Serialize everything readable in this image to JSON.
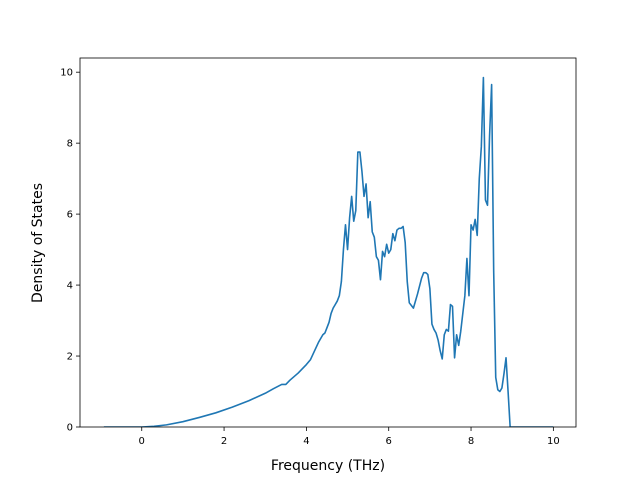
{
  "chart_data": {
    "type": "line",
    "xlabel": "Frequency (THz)",
    "ylabel": "Density of States",
    "xlim": [
      -1.5,
      10.55
    ],
    "ylim": [
      0,
      10.4
    ],
    "xticks": [
      0,
      2,
      4,
      6,
      8,
      10
    ],
    "yticks": [
      0,
      2,
      4,
      6,
      8,
      10
    ],
    "grid": false,
    "series": [
      {
        "color": "#1f77b4",
        "x": [
          -0.92,
          0.0,
          0.3,
          0.6,
          1.0,
          1.4,
          1.8,
          2.2,
          2.6,
          3.0,
          3.2,
          3.4,
          3.5,
          3.6,
          3.8,
          3.9,
          4.0,
          4.1,
          4.2,
          4.3,
          4.4,
          4.45,
          4.5,
          4.55,
          4.6,
          4.65,
          4.7,
          4.75,
          4.8,
          4.85,
          4.9,
          4.95,
          5.0,
          5.05,
          5.1,
          5.15,
          5.2,
          5.25,
          5.3,
          5.35,
          5.4,
          5.45,
          5.5,
          5.55,
          5.6,
          5.65,
          5.7,
          5.75,
          5.8,
          5.85,
          5.9,
          5.95,
          6.0,
          6.05,
          6.1,
          6.15,
          6.2,
          6.25,
          6.3,
          6.35,
          6.4,
          6.45,
          6.5,
          6.6,
          6.7,
          6.8,
          6.85,
          6.9,
          6.95,
          7.0,
          7.05,
          7.1,
          7.15,
          7.2,
          7.25,
          7.3,
          7.35,
          7.4,
          7.45,
          7.5,
          7.55,
          7.6,
          7.65,
          7.7,
          7.75,
          7.8,
          7.85,
          7.9,
          7.95,
          8.0,
          8.05,
          8.1,
          8.15,
          8.2,
          8.25,
          8.3,
          8.35,
          8.4,
          8.45,
          8.5,
          8.55,
          8.6,
          8.65,
          8.7,
          8.75,
          8.8,
          8.85,
          8.9,
          8.95,
          9.0,
          9.05,
          9.1,
          9.15,
          10.0
        ],
        "y": [
          0,
          0,
          0.02,
          0.06,
          0.15,
          0.27,
          0.4,
          0.56,
          0.74,
          0.95,
          1.08,
          1.2,
          1.2,
          1.32,
          1.52,
          1.64,
          1.76,
          1.9,
          2.15,
          2.4,
          2.6,
          2.65,
          2.8,
          2.95,
          3.2,
          3.35,
          3.45,
          3.55,
          3.7,
          4.1,
          5.0,
          5.7,
          5.0,
          5.9,
          6.5,
          5.8,
          6.1,
          7.75,
          7.75,
          7.2,
          6.5,
          6.85,
          5.9,
          6.35,
          5.5,
          5.35,
          4.8,
          4.7,
          4.15,
          4.95,
          4.8,
          5.15,
          4.9,
          5.0,
          5.45,
          5.25,
          5.55,
          5.6,
          5.6,
          5.65,
          5.2,
          4.1,
          3.5,
          3.35,
          3.75,
          4.2,
          4.35,
          4.35,
          4.3,
          3.9,
          2.9,
          2.75,
          2.65,
          2.45,
          2.15,
          1.92,
          2.6,
          2.75,
          2.7,
          3.45,
          3.4,
          1.95,
          2.6,
          2.3,
          2.7,
          3.2,
          3.7,
          4.75,
          3.7,
          5.7,
          5.55,
          5.85,
          5.4,
          7.0,
          7.9,
          9.85,
          6.4,
          6.25,
          8.2,
          9.65,
          4.4,
          1.4,
          1.05,
          1.0,
          1.1,
          1.5,
          1.95,
          1.0,
          0.0,
          0.0,
          0.0,
          0.0,
          0.0,
          0.0
        ]
      }
    ]
  }
}
